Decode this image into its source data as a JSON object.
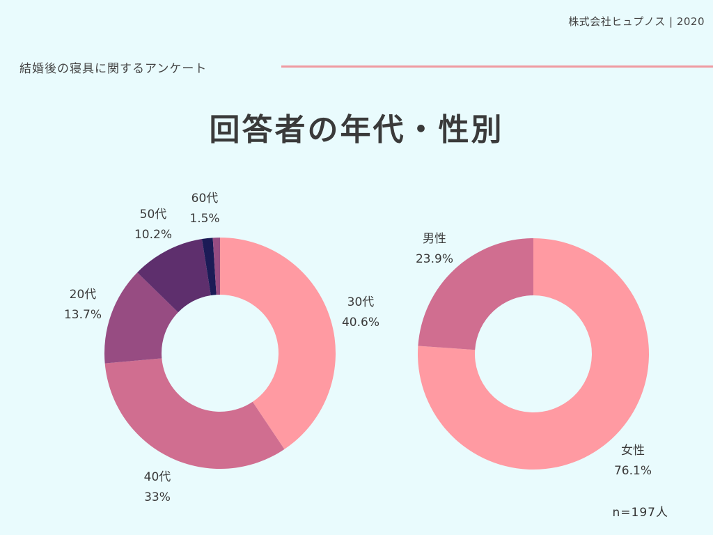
{
  "company": "株式会社ヒュプノス | 2020",
  "subtitle": "結婚後の寝具に関するアンケート",
  "title": "回答者の年代・性別",
  "note": "n=197人",
  "chart_data": [
    {
      "type": "pie",
      "donut": true,
      "start_angle_deg": 0,
      "direction": "clockwise",
      "slices": [
        {
          "label": "30代",
          "percent_text": "40.6%",
          "value": 40.6,
          "color": "#ff9aa2"
        },
        {
          "label": "40代",
          "percent_text": "33%",
          "value": 33.0,
          "color": "#d06e90"
        },
        {
          "label": "20代",
          "percent_text": "13.7%",
          "value": 13.7,
          "color": "#974c82"
        },
        {
          "label": "50代",
          "percent_text": "10.2%",
          "value": 10.2,
          "color": "#5e2f6d"
        },
        {
          "label": "60代",
          "percent_text": "1.5%",
          "value": 1.5,
          "color": "#1b1b56"
        },
        {
          "label": "",
          "percent_text": "",
          "value": 1.0,
          "color": "#974c82"
        }
      ]
    },
    {
      "type": "pie",
      "donut": true,
      "start_angle_deg": 0,
      "direction": "clockwise",
      "slices": [
        {
          "label": "女性",
          "percent_text": "76.1%",
          "value": 76.1,
          "color": "#ff9aa2"
        },
        {
          "label": "男性",
          "percent_text": "23.9%",
          "value": 23.9,
          "color": "#d06e90"
        }
      ]
    }
  ]
}
